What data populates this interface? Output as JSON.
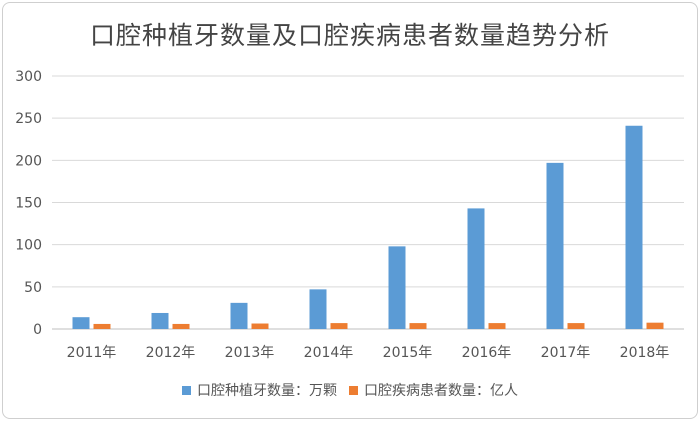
{
  "chart_data": {
    "type": "bar",
    "title": "口腔种植牙数量及口腔疾病患者数量趋势分析",
    "categories": [
      "2011年",
      "2012年",
      "2013年",
      "2014年",
      "2015年",
      "2016年",
      "2017年",
      "2018年"
    ],
    "series": [
      {
        "name": "口腔种植牙数量：万颗",
        "color": "#5b9bd5",
        "values": [
          14,
          19,
          31,
          47,
          98,
          143,
          197,
          241
        ]
      },
      {
        "name": "口腔疾病患者数量：亿人",
        "color": "#ed7d31",
        "values": [
          6,
          6,
          6.5,
          7,
          7,
          7,
          7,
          7.5
        ]
      }
    ],
    "ylim": [
      0,
      300
    ],
    "yticks": [
      0,
      50,
      100,
      150,
      200,
      250,
      300
    ],
    "grid": true,
    "legend_position": "bottom"
  }
}
